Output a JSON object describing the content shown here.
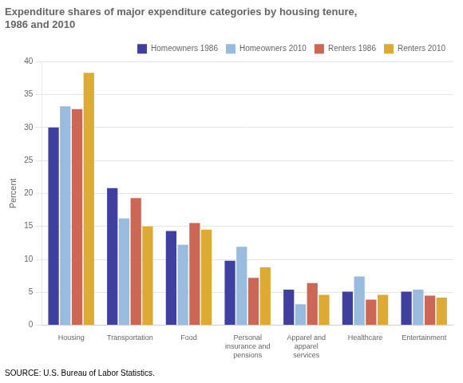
{
  "chart_data": {
    "type": "bar",
    "title": "Expenditure shares of major expenditure categories by housing tenure,\n1986 and 2010",
    "y_label": "Percent",
    "source": "SOURCE: U.S. Bureau of Labor Statistics.",
    "categories": [
      "Housing",
      "Transportation",
      "Food",
      "Personal\ninsurance and\npensions",
      "Apparel and\napparel\nservices",
      "Healthcare",
      "Entertainment"
    ],
    "series": [
      {
        "name": "Homeowners 1986",
        "color": "#4040a0",
        "values": [
          30.0,
          20.8,
          14.3,
          9.8,
          5.4,
          5.1,
          5.1
        ]
      },
      {
        "name": "Homeowners 2010",
        "color": "#99bbdd",
        "values": [
          33.2,
          16.2,
          12.2,
          11.9,
          3.2,
          7.4,
          5.4
        ]
      },
      {
        "name": "Renters 1986",
        "color": "#cc6655",
        "values": [
          32.8,
          19.3,
          15.5,
          7.2,
          6.4,
          3.9,
          4.5
        ]
      },
      {
        "name": "Renters 2010",
        "color": "#ddaa33",
        "values": [
          38.3,
          15.0,
          14.5,
          8.8,
          4.6,
          4.6,
          4.2
        ]
      }
    ],
    "ylim": [
      0,
      40
    ],
    "yticks": [
      0,
      5,
      10,
      15,
      20,
      25,
      30,
      35,
      40
    ],
    "grid": true,
    "legend": "upper right"
  }
}
